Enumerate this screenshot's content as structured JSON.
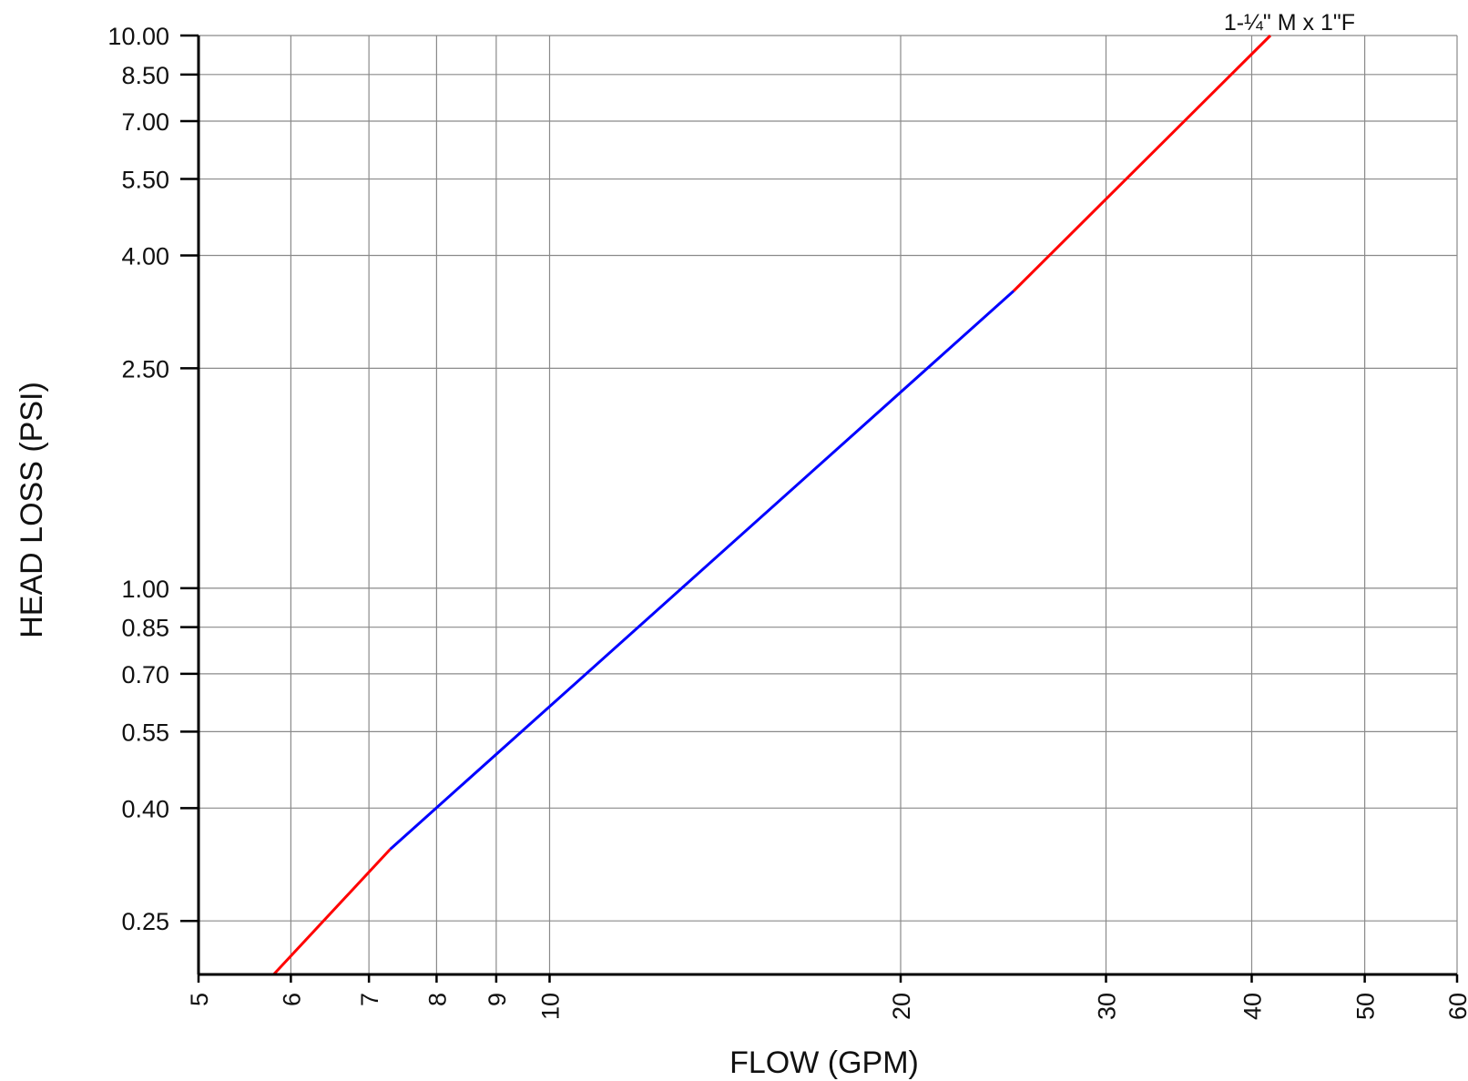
{
  "chart_data": {
    "type": "line",
    "x_scale": "log",
    "y_scale": "log",
    "xlabel": "FLOW (GPM)",
    "ylabel": "HEAD LOSS (PSI)",
    "xlim": [
      5,
      60
    ],
    "ylim": [
      0.2,
      10
    ],
    "x_ticks": [
      5,
      6,
      7,
      8,
      9,
      10,
      20,
      30,
      40,
      50,
      60
    ],
    "x_tick_labels": [
      "5",
      "6",
      "7",
      "8",
      "9",
      "10",
      "20",
      "30",
      "40",
      "50",
      "60"
    ],
    "y_ticks": [
      0.25,
      0.4,
      0.55,
      0.7,
      0.85,
      1.0,
      2.5,
      4.0,
      5.5,
      7.0,
      8.5,
      10.0
    ],
    "y_tick_labels": [
      "0.25",
      "0.40",
      "0.55",
      "0.70",
      "0.85",
      "1.00",
      "2.50",
      "4.00",
      "5.50",
      "7.00",
      "8.50",
      "10.00"
    ],
    "grid": true,
    "series": [
      {
        "name": "1-¼\" M x 1\"F",
        "segments": [
          {
            "x": [
              5.8,
              7.3
            ],
            "y": [
              0.2,
              0.337
            ],
            "color": "#ff0000"
          },
          {
            "x": [
              7.3,
              25.0
            ],
            "y": [
              0.337,
              3.45
            ],
            "color": "#0000ff"
          },
          {
            "x": [
              25.0,
              41.5
            ],
            "y": [
              3.45,
              10.0
            ],
            "color": "#ff0000"
          }
        ]
      }
    ]
  }
}
